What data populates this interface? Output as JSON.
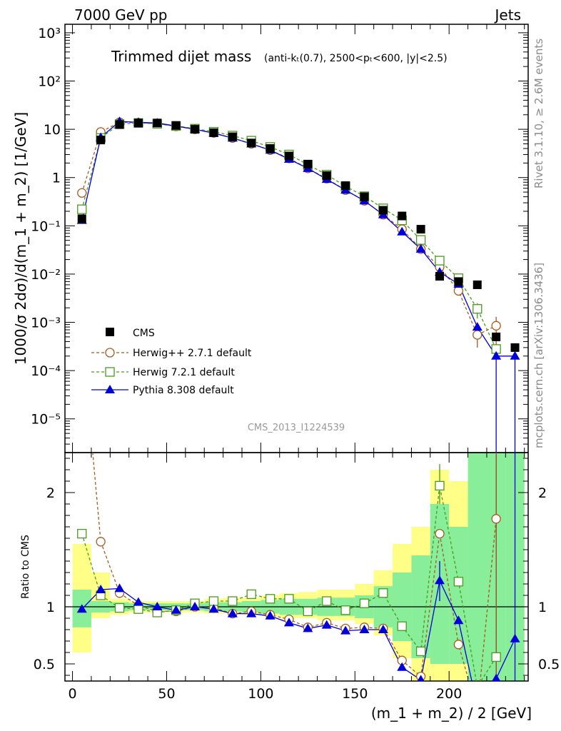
{
  "header": {
    "left": "7000 GeV pp",
    "right": "Jets"
  },
  "title": {
    "main": "Trimmed dijet mass",
    "cuts": "(anti-kₜ(0.7), 2500<pₜ<600, |y|<2.5)"
  },
  "side_labels": {
    "rivet": "Rivet 3.1.10, ≥ 2.6M events",
    "mcplots": "mcplots.cern.ch [arXiv:1306.3436]"
  },
  "watermark": "CMS_2013_I1224539",
  "axes": {
    "ylabel_main": "1000/σ 2dσ)/d(m_1 + m_2) [1/GeV]",
    "ylabel_ratio": "Ratio to CMS",
    "xlabel": "(m_1 + m_2) / 2 [GeV]"
  },
  "legend": [
    {
      "label": "CMS",
      "color": "#000000",
      "marker": "square-filled"
    },
    {
      "label": "Herwig++ 2.7.1 default",
      "color": "#a55a1e",
      "marker": "circle-open"
    },
    {
      "label": "Herwig 7.2.1 default",
      "color": "#4a9a1e",
      "marker": "square-open"
    },
    {
      "label": "Pythia 8.308 default",
      "color": "#0000dd",
      "marker": "triangle-filled"
    }
  ],
  "chart_data": {
    "type": "scatter",
    "x_axis": {
      "range": [
        -4,
        242
      ],
      "ticks": [
        "0",
        "50",
        "100",
        "150",
        "200"
      ],
      "tick_values": [
        0,
        50,
        100,
        150,
        200
      ]
    },
    "main_y_axis": {
      "scale": "log",
      "range": [
        2e-06,
        1500
      ],
      "ticks": [
        "10⁻⁵",
        "10⁻⁴",
        "10⁻³",
        "10⁻²",
        "10⁻¹",
        "1",
        "10",
        "10²",
        "10³"
      ],
      "tick_values": [
        1e-05,
        0.0001,
        0.001,
        0.01,
        0.1,
        1,
        10,
        100,
        1000
      ]
    },
    "ratio_y_axis": {
      "scale": "linear",
      "range": [
        0.35,
        2.35
      ],
      "ticks": [
        "0.5",
        "1",
        "2"
      ],
      "tick_values": [
        0.5,
        1,
        2
      ]
    },
    "x": [
      5,
      15,
      25,
      35,
      45,
      55,
      65,
      75,
      85,
      95,
      105,
      115,
      125,
      135,
      145,
      155,
      165,
      175,
      185,
      195,
      205,
      215,
      225,
      235
    ],
    "series": [
      {
        "name": "CMS",
        "values": [
          0.14,
          6.0,
          12.5,
          13.5,
          13.5,
          12.0,
          10.0,
          8.5,
          7.0,
          5.2,
          4.0,
          2.8,
          1.9,
          1.1,
          0.68,
          0.4,
          0.21,
          0.16,
          0.085,
          0.009,
          0.007,
          0.006,
          0.0005,
          0.0003
        ]
      },
      {
        "name": "Herwig++ 2.7.1 default",
        "values": [
          0.48,
          8.8,
          14.0,
          13.7,
          13.0,
          11.5,
          10.0,
          8.4,
          6.6,
          5.0,
          3.7,
          2.5,
          1.55,
          0.95,
          0.55,
          0.33,
          0.17,
          0.085,
          0.033,
          0.014,
          0.0045,
          0.00055,
          0.00085,
          null
        ]
      },
      {
        "name": "Herwig 7.2.1 default",
        "values": [
          0.22,
          6.6,
          12.8,
          13.5,
          13.0,
          11.7,
          10.3,
          8.9,
          7.4,
          5.8,
          4.3,
          3.0,
          1.85,
          1.15,
          0.66,
          0.41,
          0.23,
          0.13,
          0.051,
          0.019,
          0.0082,
          0.0019,
          0.00028,
          null
        ]
      },
      {
        "name": "Pythia 8.308 default",
        "values": [
          0.13,
          6.8,
          14.5,
          14.0,
          13.5,
          11.7,
          10.0,
          8.3,
          6.6,
          5.0,
          3.7,
          2.4,
          1.55,
          0.92,
          0.55,
          0.33,
          0.17,
          0.075,
          0.033,
          0.011,
          0.0062,
          0.0008,
          0.0002,
          0.0002
        ]
      }
    ],
    "ratio_series": [
      {
        "name": "Herwig++ 2.7.1 default",
        "values": [
          3.4,
          1.57,
          1.12,
          1.01,
          0.96,
          0.96,
          1.0,
          0.99,
          0.94,
          0.96,
          0.93,
          0.89,
          0.82,
          0.86,
          0.81,
          0.82,
          0.81,
          0.53,
          0.39,
          1.64,
          0.67,
          0.09,
          1.77,
          null
        ]
      },
      {
        "name": "Herwig 7.2.1 default",
        "values": [
          1.64,
          1.1,
          0.99,
          0.98,
          0.95,
          0.97,
          1.03,
          1.05,
          1.05,
          1.11,
          1.07,
          1.07,
          0.96,
          1.05,
          0.97,
          1.03,
          1.12,
          0.83,
          0.61,
          2.06,
          1.22,
          0.3,
          0.56,
          null
        ]
      },
      {
        "name": "Pythia 8.308 default",
        "values": [
          0.98,
          1.15,
          1.16,
          1.04,
          1.0,
          0.97,
          1.0,
          0.98,
          0.94,
          0.94,
          0.92,
          0.86,
          0.81,
          0.84,
          0.79,
          0.8,
          0.8,
          0.47,
          0.36,
          1.23,
          0.88,
          0.13,
          0.37,
          0.72
        ]
      }
    ],
    "ratio_bands": {
      "x_edges": [
        0,
        10,
        20,
        30,
        40,
        50,
        60,
        70,
        80,
        90,
        100,
        110,
        120,
        130,
        140,
        150,
        160,
        170,
        180,
        190,
        200,
        210,
        220,
        230,
        240
      ],
      "inner": [
        [
          0.82,
          1.15
        ],
        [
          0.95,
          1.05
        ],
        [
          0.96,
          1.04
        ],
        [
          0.97,
          1.03
        ],
        [
          0.97,
          1.03
        ],
        [
          0.97,
          1.03
        ],
        [
          0.97,
          1.03
        ],
        [
          0.96,
          1.04
        ],
        [
          0.96,
          1.04
        ],
        [
          0.95,
          1.05
        ],
        [
          0.94,
          1.06
        ],
        [
          0.93,
          1.07
        ],
        [
          0.93,
          1.07
        ],
        [
          0.92,
          1.08
        ],
        [
          0.92,
          1.08
        ],
        [
          0.9,
          1.1
        ],
        [
          0.82,
          1.18
        ],
        [
          0.7,
          1.3
        ],
        [
          0.55,
          1.45
        ],
        [
          0.5,
          1.9
        ],
        [
          0.5,
          1.7
        ],
        [
          0.35,
          2.35
        ],
        [
          0.35,
          2.35
        ],
        [
          0.35,
          2.35
        ]
      ],
      "outer": [
        [
          0.6,
          1.55
        ],
        [
          0.9,
          1.3
        ],
        [
          0.93,
          1.07
        ],
        [
          0.95,
          1.05
        ],
        [
          0.95,
          1.05
        ],
        [
          0.95,
          1.05
        ],
        [
          0.95,
          1.05
        ],
        [
          0.94,
          1.07
        ],
        [
          0.94,
          1.08
        ],
        [
          0.93,
          1.08
        ],
        [
          0.92,
          1.1
        ],
        [
          0.9,
          1.12
        ],
        [
          0.9,
          1.13
        ],
        [
          0.88,
          1.15
        ],
        [
          0.88,
          1.15
        ],
        [
          0.85,
          1.2
        ],
        [
          0.75,
          1.32
        ],
        [
          0.55,
          1.55
        ],
        [
          0.35,
          1.7
        ],
        [
          0.35,
          2.2
        ],
        [
          0.35,
          2.1
        ],
        [
          0.35,
          2.35
        ],
        [
          0.35,
          2.35
        ],
        [
          0.35,
          2.35
        ]
      ]
    },
    "grid": false,
    "legend_position": "bottom-left"
  }
}
